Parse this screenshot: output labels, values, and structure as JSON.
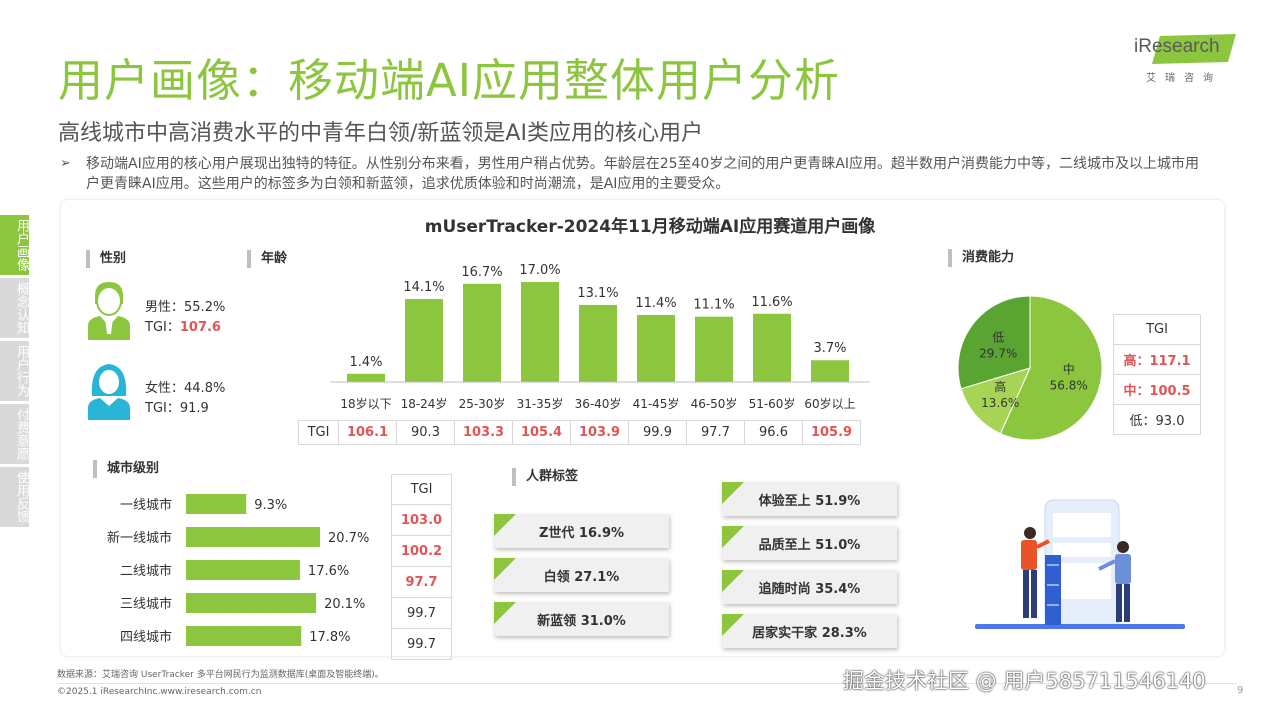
{
  "header": {
    "title": "用户画像：移动端AI应用整体用户分析",
    "subtitle": "高线城市中高消费水平的中青年白领/新蓝领是AI类应用的核心用户",
    "bullet": "➢",
    "description": "移动端AI应用的核心用户展现出独特的特征。从性别分布来看，男性用户稍占优势。年龄层在25至40岁之间的用户更青睐AI应用。超半数用户消费能力中等，二线城市及以上城市用户更青睐AI应用。这些用户的标签多为白领和新蓝领，追求优质体验和时尚潮流，是AI应用的主要受众。"
  },
  "logo": {
    "name": "iResearch",
    "sub": "艾瑞咨询"
  },
  "sidetabs": [
    {
      "label": "用户画像",
      "active": true
    },
    {
      "label": "概念认知",
      "active": false
    },
    {
      "label": "用户行为",
      "active": false
    },
    {
      "label": "付费意愿",
      "active": false
    },
    {
      "label": "使用反馈",
      "active": false
    }
  ],
  "chart_title": "mUserTracker-2024年11月移动端AI应用赛道用户画像",
  "gender": {
    "heading": "性别",
    "male": {
      "label": "男性：",
      "pct": "55.2%",
      "tgi_label": "TGI：",
      "tgi": "107.6"
    },
    "female": {
      "label": "女性：",
      "pct": "44.8%",
      "tgi_label": "TGI：",
      "tgi": "91.9"
    }
  },
  "age": {
    "heading": "年龄",
    "tgi_label": "TGI"
  },
  "consumption": {
    "heading": "消费能力",
    "tgi_header": "TGI"
  },
  "city": {
    "heading": "城市级别",
    "tgi_header": "TGI"
  },
  "crowd": {
    "heading": "人群标签"
  },
  "colors": {
    "accent": "#8cc63f",
    "red": "#e05555",
    "pie_low": "#5aa532",
    "pie_mid": "#8cc63f",
    "pie_high": "#a8d455"
  },
  "chart_data": [
    {
      "type": "bar",
      "name": "年龄",
      "categories": [
        "18岁以下",
        "18-24岁",
        "25-30岁",
        "31-35岁",
        "36-40岁",
        "41-45岁",
        "46-50岁",
        "51-60岁",
        "60岁以上"
      ],
      "values": [
        1.4,
        14.1,
        16.7,
        17.0,
        13.1,
        11.4,
        11.1,
        11.6,
        3.7
      ],
      "value_labels": [
        "1.4%",
        "14.1%",
        "16.7%",
        "17.0%",
        "13.1%",
        "11.4%",
        "11.1%",
        "11.6%",
        "3.7%"
      ],
      "tgi": [
        "106.1",
        "90.3",
        "103.3",
        "105.4",
        "103.9",
        "99.9",
        "97.7",
        "96.6",
        "105.9"
      ],
      "tgi_highlight": [
        true,
        false,
        true,
        true,
        true,
        false,
        false,
        false,
        true
      ],
      "ylim": [
        0,
        17.0
      ]
    },
    {
      "type": "pie",
      "name": "消费能力",
      "categories": [
        "低",
        "中",
        "高"
      ],
      "values": [
        29.7,
        56.8,
        13.6
      ],
      "value_labels": [
        "29.7%",
        "56.8%",
        "13.6%"
      ],
      "tgi": [
        {
          "label": "高：117.1",
          "highlight": true
        },
        {
          "label": "中：100.5",
          "highlight": true
        },
        {
          "label": "低：93.0",
          "highlight": false
        }
      ]
    },
    {
      "type": "bar",
      "name": "城市级别",
      "orientation": "horizontal",
      "categories": [
        "一线城市",
        "新一线城市",
        "二线城市",
        "三线城市",
        "四线城市"
      ],
      "values": [
        9.3,
        20.7,
        17.6,
        20.1,
        17.8
      ],
      "value_labels": [
        "9.3%",
        "20.7%",
        "17.6%",
        "20.1%",
        "17.8%"
      ],
      "tgi": [
        "103.0",
        "100.2",
        "97.7",
        "99.7",
        "99.7"
      ],
      "tgi_highlight": [
        true,
        true,
        true,
        false,
        false
      ],
      "xlim": [
        0,
        20.7
      ]
    },
    {
      "type": "table",
      "name": "人群标签",
      "left": [
        {
          "label": "Z世代  16.9%"
        },
        {
          "label": "白领  27.1%"
        },
        {
          "label": "新蓝领  31.0%"
        }
      ],
      "right": [
        {
          "label": "体验至上  51.9%"
        },
        {
          "label": "品质至上  51.0%"
        },
        {
          "label": "追随时尚  35.4%"
        },
        {
          "label": "居家实干家  28.3%"
        }
      ]
    }
  ],
  "footer": {
    "source": "数据来源：艾瑞咨询 UserTracker 多平台网民行为监测数据库(桌面及智能终端)。",
    "copyright": "©2025.1 iResearchInc.www.iresearch.com.cn",
    "page": "9",
    "watermark": "掘金技术社区 @ 用户585711546140"
  }
}
